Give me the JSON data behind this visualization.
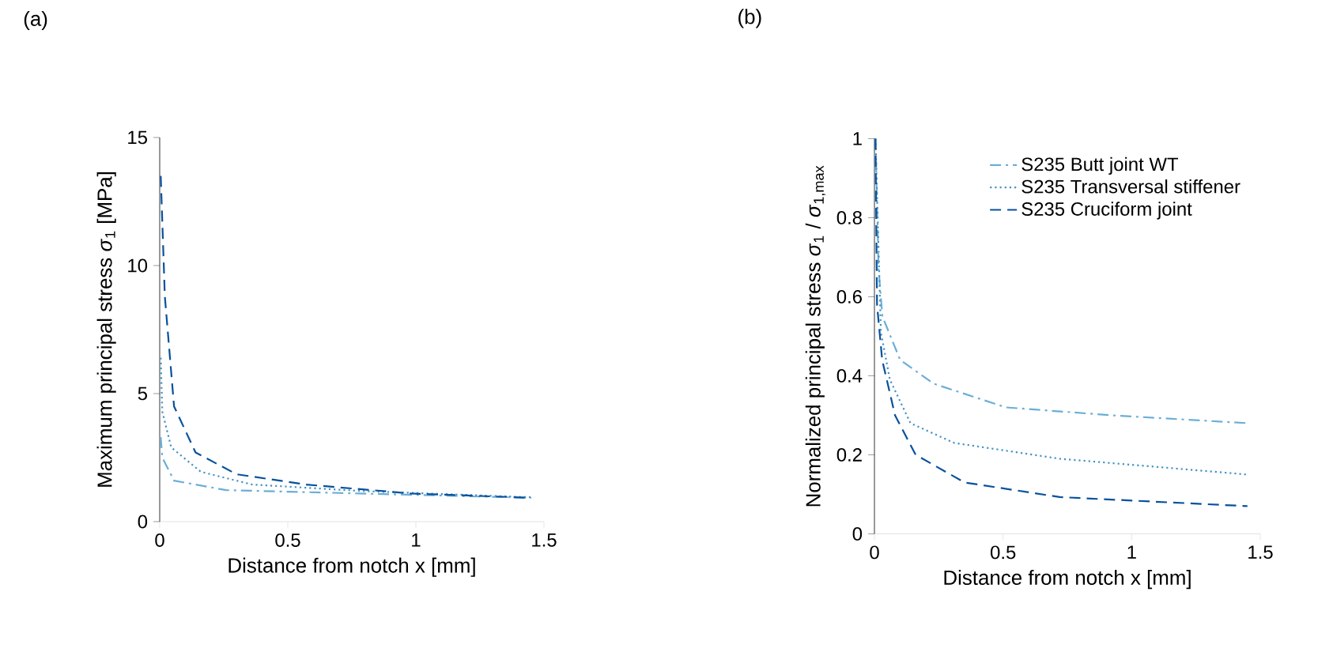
{
  "chart_data": [
    {
      "type": "line",
      "title": "(a)",
      "xlabel": "Distance from notch x [mm]",
      "ylabel": "Maximum principal stress *σ*$_{1}$ [MPa]",
      "xlim": [
        0,
        1.5
      ],
      "ylim": [
        0,
        15
      ],
      "xticks": [
        0,
        0.5,
        1,
        1.5
      ],
      "yticks": [
        0,
        5,
        10,
        15
      ],
      "legend": false,
      "series": [
        {
          "color": "#6baed6",
          "line_style": "dashdot",
          "x": [
            0.004,
            0.01,
            0.056,
            0.26,
            0.78,
            1.45
          ],
          "values": [
            3.3,
            2.5,
            1.6,
            1.23,
            1.1,
            0.93
          ]
        },
        {
          "color": "#4292c6",
          "line_style": "dotted",
          "x": [
            0.004,
            0.01,
            0.045,
            0.16,
            0.36,
            0.78,
            1.45
          ],
          "values": [
            6.4,
            4.3,
            2.9,
            1.95,
            1.45,
            1.2,
            0.95
          ]
        },
        {
          "color": "#08519c",
          "line_style": "dashed",
          "x": [
            0.004,
            0.02,
            0.056,
            0.14,
            0.3,
            0.57,
            0.98,
            1.45
          ],
          "values": [
            13.5,
            8.8,
            4.5,
            2.7,
            1.85,
            1.45,
            1.1,
            0.93
          ]
        }
      ]
    },
    {
      "type": "line",
      "title": "(b)",
      "xlabel": "Distance from notch x [mm]",
      "ylabel": "Normalized principal stress *σ*$_{1}$ / *σ*$_{1,max}$",
      "xlim": [
        0,
        1.5
      ],
      "ylim": [
        0,
        1
      ],
      "xticks": [
        0,
        0.5,
        1,
        1.5
      ],
      "yticks": [
        0,
        0.2,
        0.4,
        0.6,
        0.8,
        1
      ],
      "legend": "top right",
      "series": [
        {
          "name": "S235 Butt joint WT",
          "color": "#6baed6",
          "line_style": "dashdot",
          "x": [
            0.004,
            0.016,
            0.031,
            0.1,
            0.23,
            0.51,
            0.92,
            1.45
          ],
          "values": [
            1,
            0.67,
            0.55,
            0.44,
            0.38,
            0.32,
            0.3,
            0.28
          ]
        },
        {
          "name": "S235 Transversal stiffener",
          "color": "#4292c6",
          "line_style": "dotted",
          "x": [
            0.004,
            0.025,
            0.06,
            0.14,
            0.31,
            0.72,
            1.45
          ],
          "values": [
            1,
            0.51,
            0.39,
            0.28,
            0.23,
            0.19,
            0.15
          ]
        },
        {
          "name": "S235 Cruciform joint",
          "color": "#08519c",
          "line_style": "dashed",
          "x": [
            0.004,
            0.01,
            0.03,
            0.08,
            0.16,
            0.35,
            0.72,
            1.45
          ],
          "values": [
            1,
            0.58,
            0.44,
            0.3,
            0.2,
            0.13,
            0.093,
            0.07
          ]
        }
      ]
    }
  ]
}
